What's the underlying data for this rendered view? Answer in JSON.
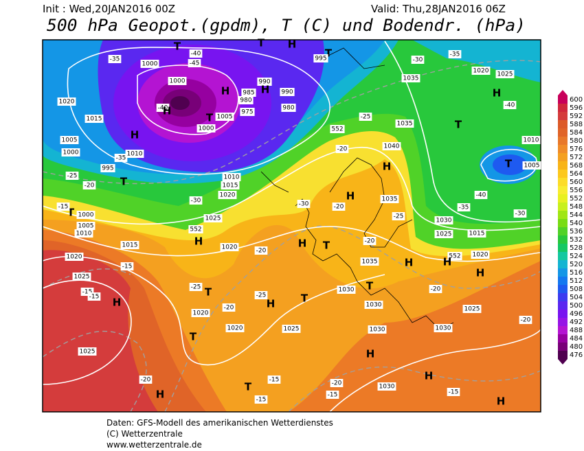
{
  "header": {
    "init": "Init : Wed,20JAN2016 00Z",
    "valid": "Valid: Thu,28JAN2016 06Z",
    "title": "500 hPa Geopot.(gpdm), T (C) und Bodendr. (hPa)"
  },
  "colorbar": {
    "labels": [
      600,
      596,
      592,
      588,
      584,
      580,
      576,
      572,
      568,
      564,
      560,
      556,
      552,
      548,
      544,
      540,
      536,
      532,
      528,
      524,
      520,
      516,
      512,
      508,
      504,
      500,
      496,
      492,
      488,
      484,
      480,
      476
    ],
    "colors": [
      "#c8005a",
      "#d0283c",
      "#d43c3c",
      "#dc5a28",
      "#e06428",
      "#e8782a",
      "#f08c28",
      "#f4a020",
      "#f8b418",
      "#fcc81e",
      "#fcdc28",
      "#f8ec30",
      "#e8f020",
      "#c8f01c",
      "#a0e614",
      "#78dc14",
      "#50d228",
      "#28c83c",
      "#14c864",
      "#14c8a0",
      "#14b4d2",
      "#1496e6",
      "#1478f0",
      "#1e5af0",
      "#3c3cf0",
      "#5a28f0",
      "#7814f0",
      "#9614e6",
      "#b414d2",
      "#9600a0",
      "#780078",
      "#500050"
    ]
  },
  "map": {
    "labels": [
      "1000",
      "-35",
      "-40",
      "-45",
      "T",
      "T",
      "H",
      "T",
      "995",
      "1000",
      "H",
      "985",
      "990",
      "990",
      "H",
      "980",
      "975",
      "980",
      "-40",
      "H",
      "T",
      "1005",
      "1000",
      "H",
      "1020",
      "1015",
      "1005",
      "1010",
      "1000",
      "995",
      "-35",
      "-25",
      "-20",
      "T",
      "1010",
      "1015",
      "1020",
      "-30",
      "T",
      "1000",
      "1005",
      "1010",
      "-15",
      "552",
      "H",
      "1025",
      "1015",
      "1020",
      "-15",
      "1025",
      "-15",
      "-15",
      "H",
      "1025",
      "-20",
      "H",
      "-25",
      "T",
      "1020",
      "-20",
      "T",
      "1020",
      "-25",
      "H",
      "T",
      "1025",
      "T",
      "-15",
      "-15",
      "-20",
      "-15",
      "1030",
      "H",
      "1030",
      "1030",
      "T",
      "1030",
      "1035",
      "H",
      "-20",
      "1035",
      "-25",
      "H",
      "1040",
      "-20",
      "H",
      "-20",
      "552",
      "-25",
      "1035",
      "1035",
      "-30",
      "-35",
      "1020",
      "1025",
      "H",
      "-40",
      "T",
      "1010",
      "T",
      "1005",
      "-40",
      "-35",
      "-30",
      "1030",
      "1025",
      "1015",
      "552",
      "1020",
      "H",
      "H",
      "-20",
      "1025",
      "-20",
      "1030",
      "H",
      "-15",
      "H",
      "T",
      "-30",
      "H",
      "-20",
      "1020"
    ]
  },
  "footer": {
    "lines": [
      "Daten: GFS-Modell des amerikanischen Wetterdienstes",
      "(C) Wetterzentrale",
      "www.wetterzentrale.de"
    ]
  }
}
